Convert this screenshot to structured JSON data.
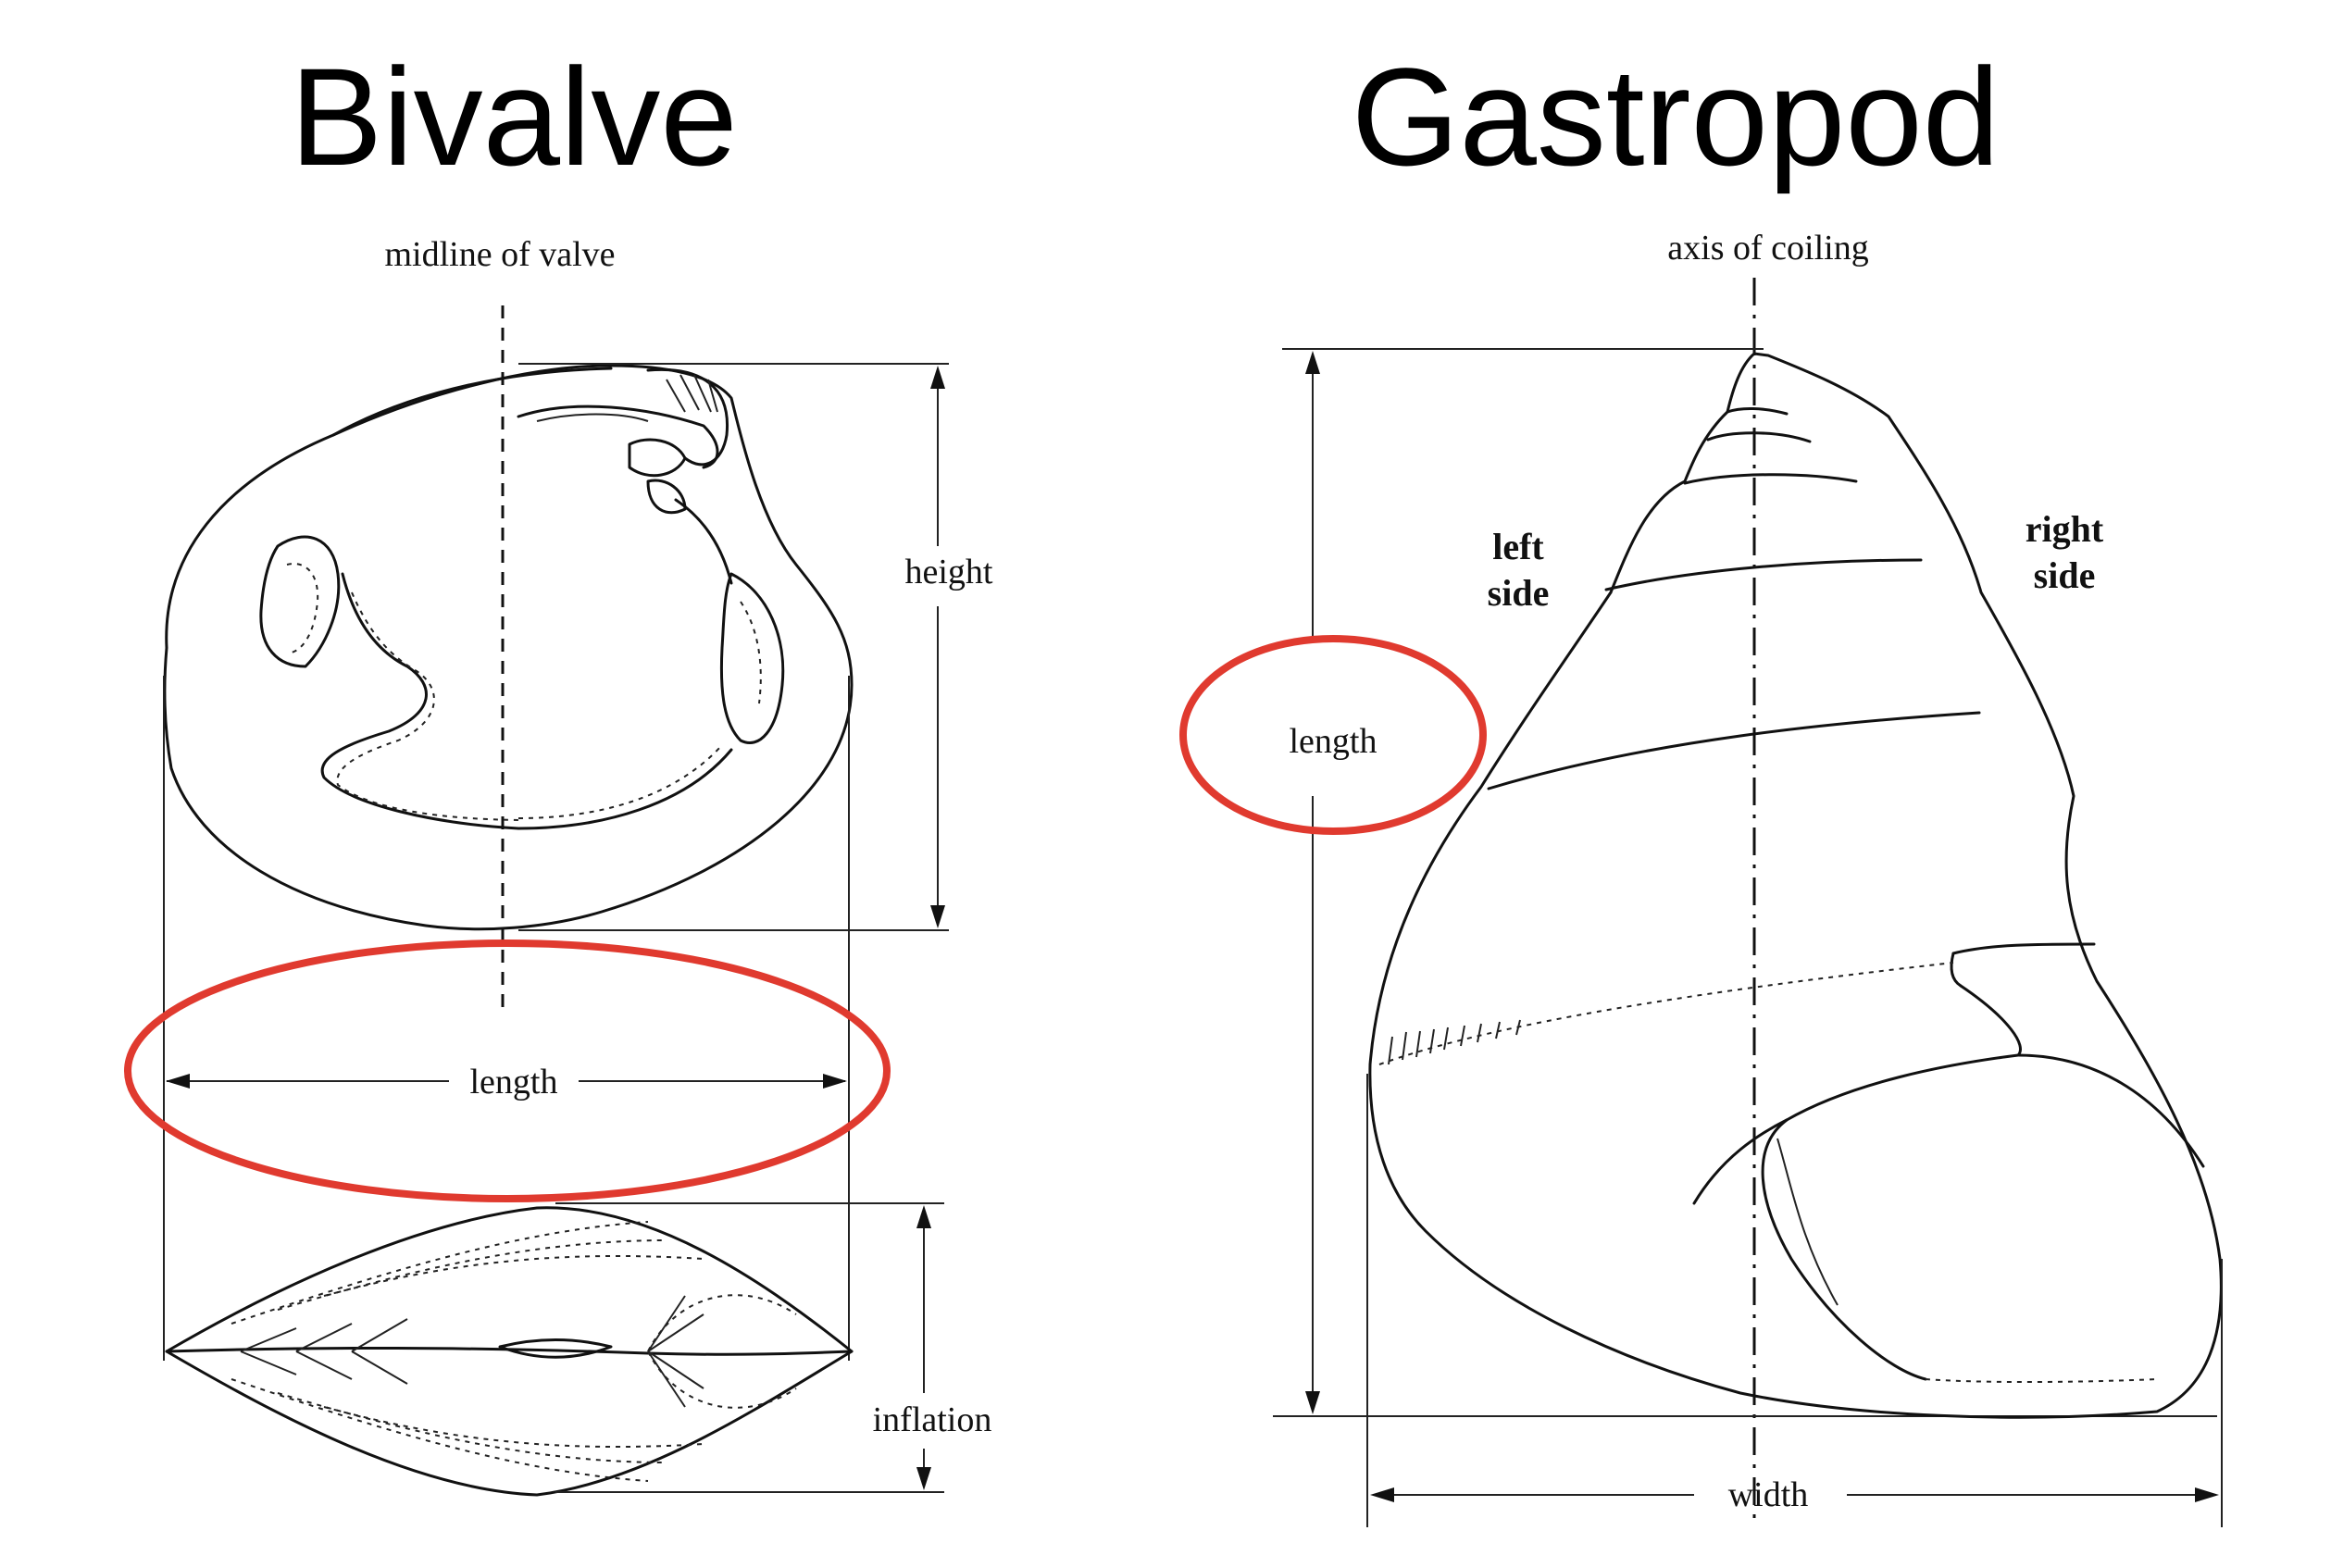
{
  "bivalve": {
    "title": "Bivalve",
    "labels": {
      "midline": "midline of valve",
      "height": "height",
      "length": "length",
      "inflation": "inflation"
    }
  },
  "gastropod": {
    "title": "Gastropod",
    "labels": {
      "axis": "axis of coiling",
      "left_line1": "left",
      "left_line2": "side",
      "right_line1": "right",
      "right_line2": "side",
      "length": "length",
      "width": "width"
    }
  },
  "highlight_color": "#e03a2f"
}
